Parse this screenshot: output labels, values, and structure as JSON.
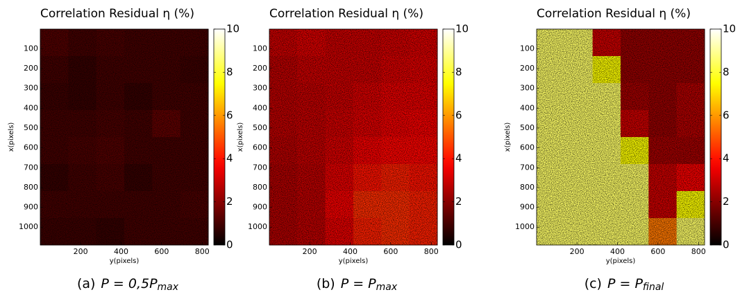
{
  "chart_data": [
    {
      "type": "heatmap",
      "title": "Correlation Residual η (%)",
      "xlabel": "y(pixels)",
      "ylabel": "x(pixels)",
      "caption": {
        "label": "(a)",
        "expr": "P = 0,5P",
        "sub": "max"
      },
      "colormap": "hot",
      "clim": [
        0,
        10
      ],
      "cticks": [
        0,
        2,
        4,
        6,
        8,
        10
      ],
      "xlim": [
        1,
        830
      ],
      "xticks": [
        200,
        400,
        600,
        800
      ],
      "ylim": [
        1,
        1090
      ],
      "yreverse": true,
      "yticks": [
        100,
        200,
        300,
        400,
        500,
        600,
        700,
        800,
        900,
        1000
      ],
      "values": [
        [
          1.2,
          1.0,
          1.1,
          1.0,
          1.0,
          1.0
        ],
        [
          1.0,
          0.8,
          1.0,
          1.0,
          1.0,
          0.9
        ],
        [
          0.9,
          0.8,
          1.0,
          0.8,
          1.0,
          1.0
        ],
        [
          1.0,
          1.0,
          1.1,
          1.0,
          1.4,
          1.0
        ],
        [
          1.0,
          1.1,
          1.2,
          1.0,
          1.0,
          1.0
        ],
        [
          0.8,
          1.0,
          1.1,
          0.8,
          1.0,
          1.0
        ],
        [
          1.0,
          1.0,
          1.0,
          1.0,
          1.0,
          1.1
        ],
        [
          0.9,
          0.9,
          0.8,
          1.0,
          1.0,
          1.0
        ]
      ]
    },
    {
      "type": "heatmap",
      "title": "Correlation Residual η (%)",
      "xlabel": "y(pixels)",
      "ylabel": "x(pixels)",
      "caption": {
        "label": "(b)",
        "expr": "P = P",
        "sub": "max"
      },
      "colormap": "hot",
      "clim": [
        0,
        10
      ],
      "cticks": [
        0,
        2,
        4,
        6,
        8,
        10
      ],
      "xlim": [
        1,
        830
      ],
      "xticks": [
        200,
        400,
        600,
        800
      ],
      "ylim": [
        1,
        1090
      ],
      "yreverse": true,
      "yticks": [
        100,
        200,
        300,
        400,
        500,
        600,
        700,
        800,
        900,
        1000
      ],
      "values": [
        [
          3.0,
          3.2,
          3.0,
          3.0,
          3.1,
          3.2
        ],
        [
          2.8,
          3.0,
          3.0,
          3.0,
          3.2,
          3.3
        ],
        [
          2.8,
          2.9,
          3.0,
          3.2,
          3.4,
          3.4
        ],
        [
          2.8,
          2.9,
          3.1,
          3.3,
          3.5,
          3.6
        ],
        [
          2.7,
          2.9,
          3.2,
          3.6,
          3.8,
          3.8
        ],
        [
          2.6,
          2.8,
          3.4,
          4.0,
          4.2,
          4.0
        ],
        [
          2.6,
          2.8,
          3.6,
          4.4,
          4.4,
          4.2
        ],
        [
          2.6,
          2.8,
          3.4,
          4.2,
          4.4,
          4.2
        ]
      ]
    },
    {
      "type": "heatmap",
      "title": "Correlation Residual η (%)",
      "xlabel": "y(pixels)",
      "ylabel": "x(pixels)",
      "caption": {
        "label": "(c)",
        "expr": "P = P",
        "sub": "final"
      },
      "colormap": "hot",
      "clim": [
        0,
        10
      ],
      "cticks": [
        0,
        2,
        4,
        6,
        8,
        10
      ],
      "xlim": [
        1,
        830
      ],
      "xticks": [
        200,
        400,
        600,
        800
      ],
      "ylim": [
        1,
        1090
      ],
      "yreverse": true,
      "yticks": [
        100,
        200,
        300,
        400,
        500,
        600,
        700,
        800,
        900,
        1000
      ],
      "values": [
        [
          8.5,
          8.5,
          3.0,
          2.2,
          2.2,
          2.2
        ],
        [
          8.5,
          8.5,
          7.5,
          2.2,
          2.2,
          2.2
        ],
        [
          8.5,
          8.5,
          8.5,
          2.4,
          2.2,
          2.6
        ],
        [
          8.5,
          8.5,
          8.5,
          3.0,
          2.2,
          2.6
        ],
        [
          8.5,
          8.5,
          8.5,
          7.5,
          2.4,
          2.4
        ],
        [
          8.5,
          8.5,
          8.5,
          8.5,
          3.0,
          3.6
        ],
        [
          8.5,
          8.5,
          8.5,
          8.5,
          3.0,
          7.5
        ],
        [
          8.5,
          8.5,
          8.5,
          8.5,
          5.5,
          8.5
        ]
      ]
    }
  ]
}
